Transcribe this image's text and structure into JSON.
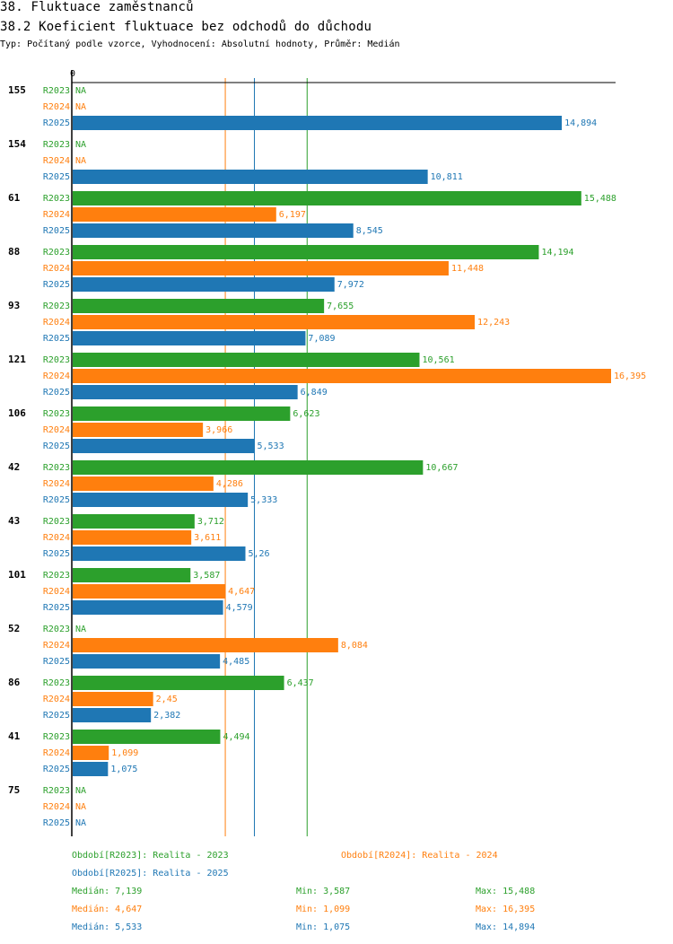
{
  "header": {
    "title": "38. Fluktuace zaměstnanců",
    "subtitle": "38.2 Koeficient fluktuace bez odchodů do důchodu",
    "meta": "Typ: Počítaný podle vzorce, Vyhodnocení: Absolutní hodnoty, Průměr: Medián"
  },
  "colors": {
    "R2023": "#2ca02c",
    "R2024": "#ff7f0e",
    "R2025": "#1f77b4"
  },
  "chart_data": {
    "type": "bar",
    "orientation": "horizontal",
    "title": "38.2 Koeficient fluktuace bez odchodů do důchodu",
    "axis_zero_label": "0",
    "xlim": [
      0,
      16.395
    ],
    "categories": [
      "155",
      "154",
      "61",
      "88",
      "93",
      "121",
      "106",
      "42",
      "43",
      "101",
      "52",
      "86",
      "41",
      "75"
    ],
    "series": [
      {
        "name": "R2023",
        "labels": [
          "NA",
          "NA",
          "15,488",
          "14,194",
          "7,655",
          "10,561",
          "6,623",
          "10,667",
          "3,712",
          "3,587",
          "NA",
          "6,437",
          "4,494",
          "NA"
        ],
        "values": [
          null,
          null,
          15.488,
          14.194,
          7.655,
          10.561,
          6.623,
          10.667,
          3.712,
          3.587,
          null,
          6.437,
          4.494,
          null
        ]
      },
      {
        "name": "R2024",
        "labels": [
          "NA",
          "NA",
          "6,197",
          "11,448",
          "12,243",
          "16,395",
          "3,966",
          "4,286",
          "3,611",
          "4,647",
          "8,084",
          "2,45",
          "1,099",
          "NA"
        ],
        "values": [
          null,
          null,
          6.197,
          11.448,
          12.243,
          16.395,
          3.966,
          4.286,
          3.611,
          4.647,
          8.084,
          2.45,
          1.099,
          null
        ]
      },
      {
        "name": "R2025",
        "labels": [
          "14,894",
          "10,811",
          "8,545",
          "7,972",
          "7,089",
          "6,849",
          "5,533",
          "5,333",
          "5,26",
          "4,579",
          "4,485",
          "2,382",
          "1,075",
          "NA"
        ],
        "values": [
          14.894,
          10.811,
          8.545,
          7.972,
          7.089,
          6.849,
          5.533,
          5.333,
          5.26,
          4.579,
          4.485,
          2.382,
          1.075,
          null
        ]
      }
    ],
    "medians": {
      "R2023": 7.139,
      "R2024": 4.647,
      "R2025": 5.533
    }
  },
  "legend": {
    "periods": [
      {
        "key": "R2023",
        "text": "Období[R2023]: Realita - 2023"
      },
      {
        "key": "R2024",
        "text": "Období[R2024]: Realita - 2024"
      },
      {
        "key": "R2025",
        "text": "Období[R2025]: Realita - 2025"
      }
    ],
    "stats": [
      {
        "key": "R2023",
        "median": "Medián: 7,139",
        "min": "Min: 3,587",
        "max": "Max: 15,488"
      },
      {
        "key": "R2024",
        "median": "Medián: 4,647",
        "min": "Min: 1,099",
        "max": "Max: 16,395"
      },
      {
        "key": "R2025",
        "median": "Medián: 5,533",
        "min": "Min: 1,075",
        "max": "Max: 14,894"
      }
    ]
  }
}
